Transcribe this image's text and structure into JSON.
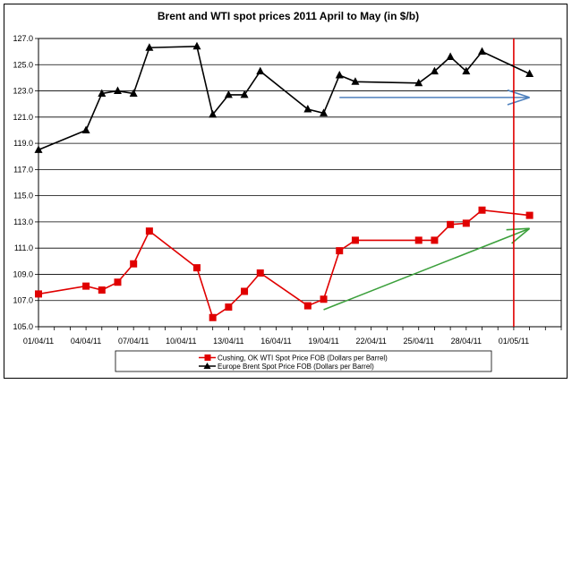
{
  "chart_data": {
    "type": "line",
    "title": "Brent and WTI spot prices 2011 April to May (in $/b)",
    "xlabel": "",
    "ylabel": "",
    "ylim": [
      105.0,
      127.0
    ],
    "yticks": [
      "105.0",
      "107.0",
      "109.0",
      "111.0",
      "113.0",
      "115.0",
      "117.0",
      "119.0",
      "121.0",
      "123.0",
      "125.0",
      "127.0"
    ],
    "xlim_days": [
      0,
      33
    ],
    "x_tick_labels": [
      "01/04/11",
      "04/04/11",
      "07/04/11",
      "10/04/11",
      "13/04/11",
      "16/04/11",
      "19/04/11",
      "22/04/11",
      "25/04/11",
      "28/04/11",
      "01/05/11"
    ],
    "grid": "horizontal",
    "legend_position": "bottom",
    "vertical_marker_date": "2011-05-01",
    "series": [
      {
        "name": "Cushing, OK WTI Spot Price FOB (Dollars per Barrel)",
        "color": "#e00000",
        "marker": "square",
        "x": [
          "2011-04-01",
          "2011-04-04",
          "2011-04-05",
          "2011-04-06",
          "2011-04-07",
          "2011-04-08",
          "2011-04-11",
          "2011-04-12",
          "2011-04-13",
          "2011-04-14",
          "2011-04-15",
          "2011-04-18",
          "2011-04-19",
          "2011-04-20",
          "2011-04-21",
          "2011-04-25",
          "2011-04-26",
          "2011-04-27",
          "2011-04-28",
          "2011-04-29",
          "2011-05-02"
        ],
        "values": [
          107.5,
          108.1,
          107.8,
          108.4,
          109.8,
          112.3,
          109.5,
          105.7,
          106.5,
          107.7,
          109.1,
          106.6,
          107.1,
          110.8,
          111.6,
          111.6,
          111.6,
          112.8,
          112.9,
          113.9,
          113.5
        ]
      },
      {
        "name": "Europe Brent Spot Price FOB (Dollars per Barrel)",
        "color": "#000000",
        "marker": "triangle",
        "x": [
          "2011-04-01",
          "2011-04-04",
          "2011-04-05",
          "2011-04-06",
          "2011-04-07",
          "2011-04-08",
          "2011-04-11",
          "2011-04-12",
          "2011-04-13",
          "2011-04-14",
          "2011-04-15",
          "2011-04-18",
          "2011-04-19",
          "2011-04-20",
          "2011-04-21",
          "2011-04-25",
          "2011-04-26",
          "2011-04-27",
          "2011-04-28",
          "2011-04-29",
          "2011-05-02"
        ],
        "values": [
          118.5,
          120.0,
          122.8,
          123.0,
          122.8,
          126.3,
          126.4,
          121.2,
          122.7,
          122.7,
          124.5,
          121.6,
          121.3,
          124.2,
          123.7,
          123.6,
          124.5,
          125.6,
          124.5,
          126.0,
          124.3
        ]
      }
    ],
    "annotations": [
      {
        "type": "arrow",
        "color": "#4f81bd",
        "from": [
          "2011-04-20",
          122.5
        ],
        "to": [
          "2011-05-02",
          122.5
        ]
      },
      {
        "type": "arrow",
        "color": "#3ca03c",
        "from": [
          "2011-04-19",
          106.3
        ],
        "to": [
          "2011-05-02",
          112.5
        ]
      }
    ]
  }
}
